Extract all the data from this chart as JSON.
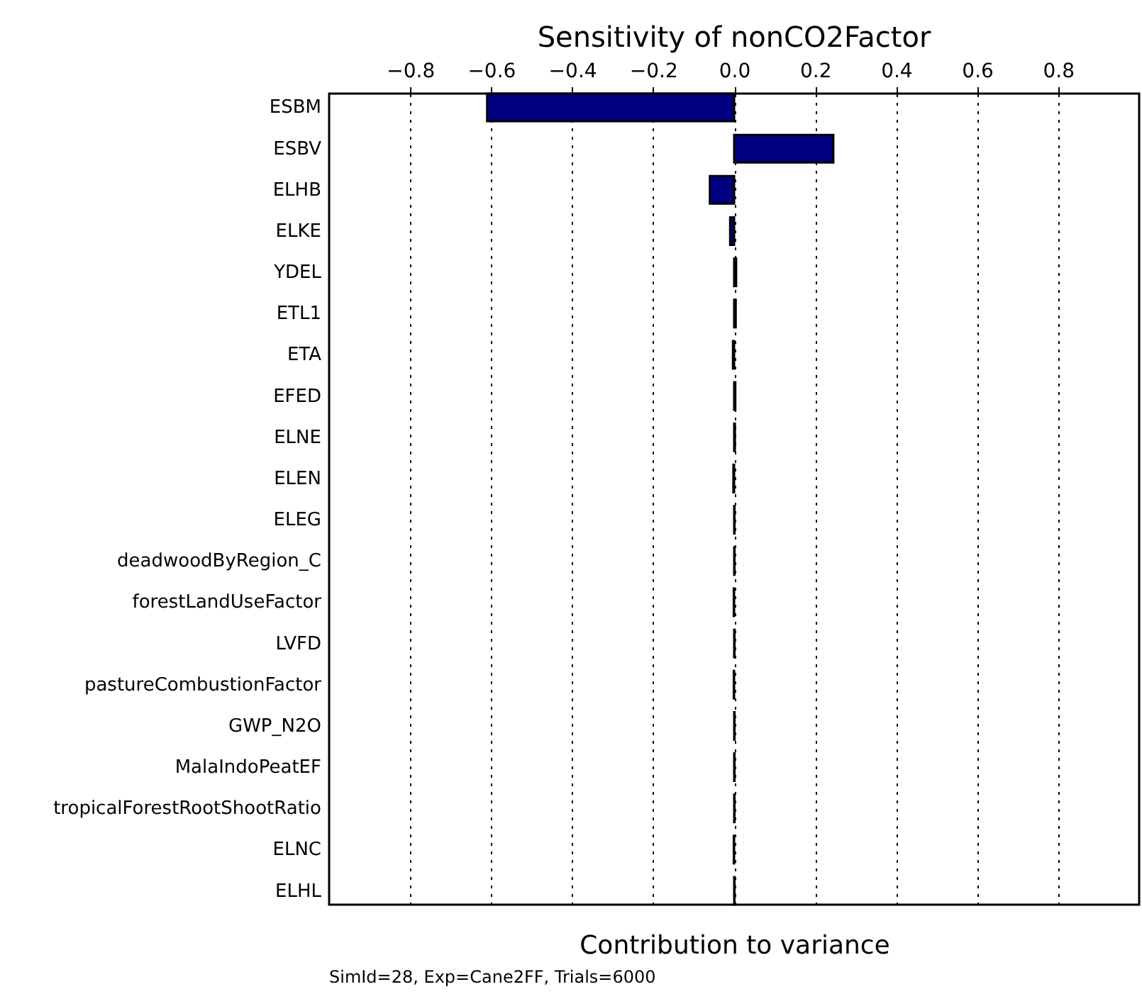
{
  "chart_data": {
    "type": "bar",
    "orientation": "horizontal",
    "title": "Sensitivity of nonCO2Factor",
    "xlabel": "Contribution to variance",
    "categories": [
      "ESBM",
      "ESBV",
      "ELHB",
      "ELKE",
      "YDEL",
      "ETL1",
      "ETA",
      "EFED",
      "ELNE",
      "ELEN",
      "ELEG",
      "deadwoodByRegion_C",
      "forestLandUseFactor",
      "LVFD",
      "pastureCombustionFactor",
      "GWP_N2O",
      "MalaIndoPeatEF",
      "tropicalForestRootShootRatio",
      "ELNC",
      "ELHL"
    ],
    "values": [
      -0.61,
      0.245,
      -0.06,
      -0.01,
      0.005,
      0.004,
      -0.003,
      0.003,
      0.002,
      -0.002,
      0.001,
      0.001,
      -0.001,
      0.001,
      -0.001,
      0.001,
      0.001,
      0.001,
      -0.001,
      0.001
    ],
    "color": "#000080",
    "xlim": [
      -1.0,
      1.0
    ],
    "xticks": [
      {
        "value": -0.8,
        "label": "−0.8"
      },
      {
        "value": -0.6,
        "label": "−0.6"
      },
      {
        "value": -0.4,
        "label": "−0.4"
      },
      {
        "value": -0.2,
        "label": "−0.2"
      },
      {
        "value": 0,
        "label": "0.0"
      },
      {
        "value": 0.2,
        "label": "0.2"
      },
      {
        "value": 0.4,
        "label": "0.4"
      },
      {
        "value": 0.6,
        "label": "0.6"
      },
      {
        "value": 0.8,
        "label": "0.8"
      }
    ],
    "grid": "x",
    "annotations": [
      "SimId=28, Exp=Cane2FF, Trials=6000"
    ]
  }
}
